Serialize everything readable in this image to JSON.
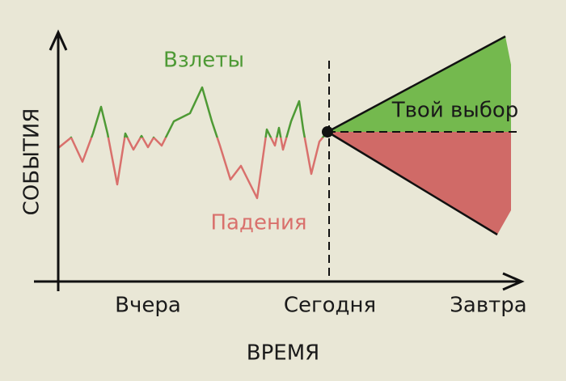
{
  "labels": {
    "ups": "Взлеты",
    "downs": "Падения",
    "choice": "Твой выбор"
  },
  "axes": {
    "y_title": "СОБЫТИЯ",
    "x_title": "ВРЕМЯ",
    "x_labels": [
      "Вчера",
      "Сегодня",
      "Завтра"
    ]
  }
}
